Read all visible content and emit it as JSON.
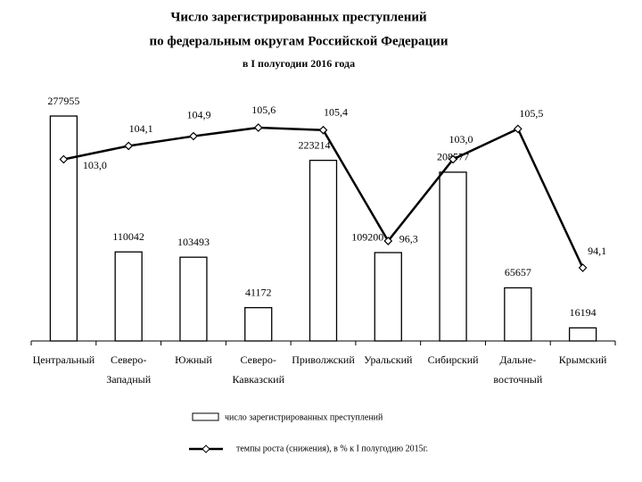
{
  "chart_data": {
    "type": "bar+line",
    "title": [
      "Число зарегистрированных преступлений",
      "по федеральным округам Российской Федерации",
      "в I полугодии 2016 года"
    ],
    "categories": [
      [
        "Центральный"
      ],
      [
        "Северо-",
        "Западный"
      ],
      [
        "Южный"
      ],
      [
        "Северо-",
        "Кавказский"
      ],
      [
        "Приволжский"
      ],
      [
        "Уральский"
      ],
      [
        "Сибирский"
      ],
      [
        "Дальне-",
        "восточный"
      ],
      [
        "Крымский"
      ]
    ],
    "series": [
      {
        "name": "число зарегистрированных преступлений",
        "type": "bar",
        "color": "#000000",
        "values": [
          277955,
          110042,
          103493,
          41172,
          223214,
          109200,
          208577,
          65657,
          16194
        ]
      },
      {
        "name": "темпы роста (снижения), в % к I полугодию 2015г.",
        "type": "line",
        "axis": "y2",
        "color": "#000000",
        "values": [
          103.0,
          104.1,
          104.9,
          105.6,
          105.4,
          96.3,
          103.0,
          105.5,
          94.1
        ],
        "value_labels": [
          "103,0",
          "104,1",
          "104,9",
          "105,6",
          "105,4",
          "96,3",
          "103,0",
          "105,5",
          "94,1"
        ]
      }
    ]
  }
}
